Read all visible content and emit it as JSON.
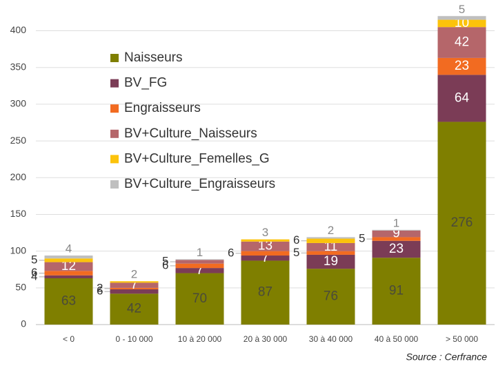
{
  "chart_data": {
    "type": "stacked_bar",
    "categories": [
      "< 0",
      "0 - 10 000",
      "10 à 20 000",
      "20 à 30 000",
      "30 à 40 000",
      "40 à 50 000",
      "> 50 000"
    ],
    "series": [
      {
        "name": "Naisseurs",
        "color": "#7f7f00",
        "values": [
          63,
          42,
          70,
          87,
          76,
          91,
          276
        ]
      },
      {
        "name": "BV_FG",
        "color": "#7b3c56",
        "values": [
          4,
          6,
          7,
          7,
          19,
          23,
          64
        ]
      },
      {
        "name": "Engraisseurs",
        "color": "#f26b21",
        "values": [
          6,
          2,
          6,
          6,
          5,
          5,
          23
        ]
      },
      {
        "name": "BV+Culture_Naisseurs",
        "color": "#b5666a",
        "values": [
          12,
          7,
          5,
          13,
          11,
          9,
          42
        ]
      },
      {
        "name": "BV+Culture_Femelles_G",
        "color": "#fcc30b",
        "values": [
          5,
          2,
          null,
          3,
          6,
          null,
          10
        ]
      },
      {
        "name": "BV+Culture_Engraisseurs",
        "color": "#bfbfbf",
        "values": [
          4,
          null,
          1,
          null,
          2,
          1,
          5
        ]
      }
    ],
    "ylim": [
      0,
      440
    ],
    "yticks": [
      0,
      50,
      100,
      150,
      200,
      250,
      300,
      350,
      400
    ],
    "grid": true,
    "legend": "top-left",
    "source": "Source : Cerfrance"
  }
}
